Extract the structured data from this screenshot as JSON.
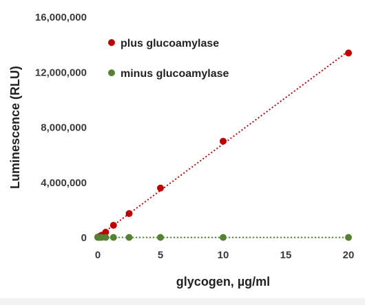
{
  "chart_data": {
    "type": "scatter",
    "xlabel": "glycogen, µg/ml",
    "ylabel": "Luminescence (RLU)",
    "xlim": [
      0,
      20
    ],
    "ylim": [
      0,
      16000000
    ],
    "x_ticks": [
      0,
      5,
      10,
      15,
      20
    ],
    "y_ticks": [
      0,
      4000000,
      8000000,
      12000000,
      16000000
    ],
    "x_tick_labels": [
      "0",
      "5",
      "10",
      "15",
      "20"
    ],
    "y_tick_labels": [
      "0",
      "4,000,000",
      "8,000,000",
      "12,000,000",
      "16,000,000"
    ],
    "grid": false,
    "legend_position": "top-left",
    "series": [
      {
        "name": "plus glucoamylase",
        "color": "#c00000",
        "trendline": "linear",
        "points": [
          {
            "x": 0,
            "y": 40000
          },
          {
            "x": 0.16,
            "y": 100000
          },
          {
            "x": 0.31,
            "y": 180000
          },
          {
            "x": 0.63,
            "y": 400000
          },
          {
            "x": 1.25,
            "y": 900000
          },
          {
            "x": 2.5,
            "y": 1750000
          },
          {
            "x": 5,
            "y": 3600000
          },
          {
            "x": 10,
            "y": 7000000
          },
          {
            "x": 20,
            "y": 13400000
          }
        ]
      },
      {
        "name": "minus glucoamylase",
        "color": "#548235",
        "trendline": "linear",
        "points": [
          {
            "x": 0,
            "y": 20000
          },
          {
            "x": 0.16,
            "y": 20000
          },
          {
            "x": 0.31,
            "y": 20000
          },
          {
            "x": 0.63,
            "y": 20000
          },
          {
            "x": 1.25,
            "y": 20000
          },
          {
            "x": 2.5,
            "y": 20000
          },
          {
            "x": 5,
            "y": 20000
          },
          {
            "x": 10,
            "y": 20000
          },
          {
            "x": 20,
            "y": 20000
          }
        ]
      }
    ]
  }
}
